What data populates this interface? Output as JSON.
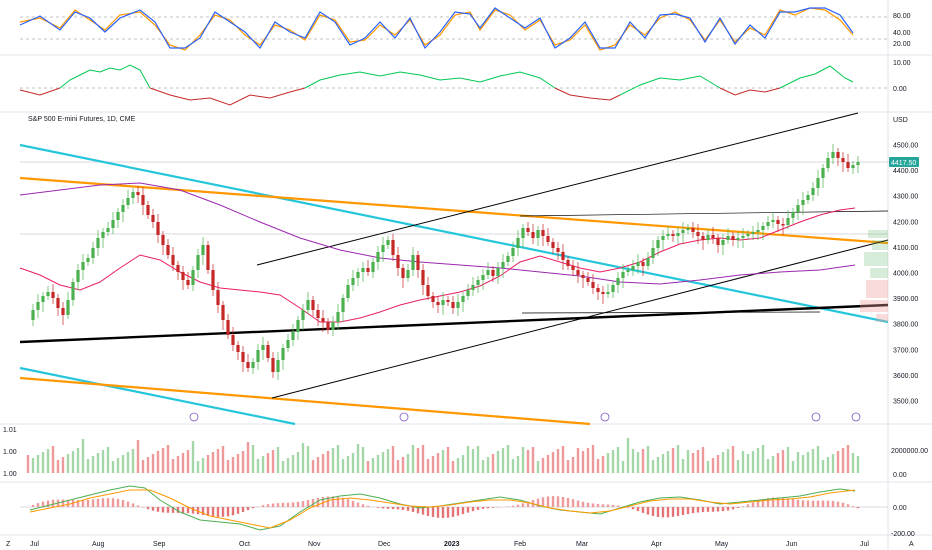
{
  "chart_data": {
    "type": "candlestick",
    "title": "S&P 500 E-mini Futures, 1D, CME",
    "currency": "USD",
    "last_price": "4417.50",
    "x_ticks": [
      "Jul",
      "Aug",
      "Sep",
      "Oct",
      "Nov",
      "Dec",
      "2023",
      "Feb",
      "Mar",
      "Apr",
      "May",
      "Jun",
      "Jul"
    ],
    "y_ticks": [
      "4500.00",
      "4400.00",
      "4300.00",
      "4200.00",
      "4100.00",
      "4000.00",
      "3900.00",
      "3800.00",
      "3700.00",
      "3600.00",
      "3500.00"
    ],
    "ylim": [
      3450,
      4600
    ],
    "stoch_ticks": [
      "80.00",
      "40.00",
      "20.00"
    ],
    "osc_ticks": [
      "10.00",
      "0.00"
    ],
    "vol_left_ticks": [
      "1.01",
      "1.00",
      "1.00"
    ],
    "vol_right_ticks": [
      "2000000.00",
      "0.00"
    ],
    "macd_ticks": [
      "0.00",
      "-200.00"
    ],
    "bottom_left_label": "Z",
    "bottom_right_label": "A",
    "colors": {
      "up": "#4caf50",
      "down": "#c62828",
      "teal": "#26c6da",
      "orange": "#ff9800",
      "black": "#000000",
      "purple": "#9c27b0",
      "red_ma": "#e91e63",
      "stoch_blue": "#2962ff",
      "stoch_orange": "#ff9800"
    }
  }
}
